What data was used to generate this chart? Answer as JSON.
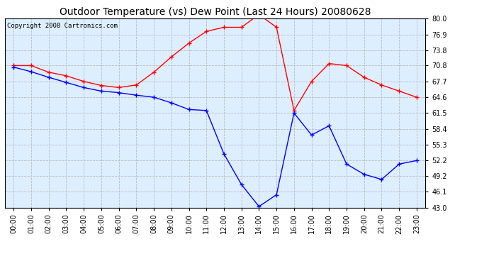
{
  "title": "Outdoor Temperature (vs) Dew Point (Last 24 Hours) 20080628",
  "copyright": "Copyright 2008 Cartronics.com",
  "x_labels": [
    "00:00",
    "01:00",
    "02:00",
    "03:00",
    "04:00",
    "05:00",
    "06:00",
    "07:00",
    "08:00",
    "09:00",
    "10:00",
    "11:00",
    "12:00",
    "13:00",
    "14:00",
    "15:00",
    "16:00",
    "17:00",
    "18:00",
    "19:00",
    "20:00",
    "21:00",
    "22:00",
    "23:00"
  ],
  "y_ticks": [
    43.0,
    46.1,
    49.2,
    52.2,
    55.3,
    58.4,
    61.5,
    64.6,
    67.7,
    70.8,
    73.8,
    76.9,
    80.0
  ],
  "y_min": 43.0,
  "y_max": 80.0,
  "temp_data": [
    70.8,
    70.8,
    69.5,
    68.8,
    67.7,
    66.9,
    66.5,
    67.0,
    69.5,
    72.5,
    75.2,
    77.5,
    78.3,
    78.3,
    80.8,
    78.3,
    62.0,
    67.7,
    71.2,
    70.8,
    68.5,
    67.0,
    65.8,
    64.6
  ],
  "dew_data": [
    70.5,
    69.6,
    68.5,
    67.5,
    66.5,
    65.8,
    65.5,
    65.0,
    64.6,
    63.5,
    62.2,
    62.0,
    53.5,
    47.5,
    43.2,
    45.5,
    61.5,
    57.2,
    59.0,
    51.5,
    49.5,
    48.5,
    51.5,
    52.2
  ],
  "temp_color": "#FF0000",
  "dew_color": "#0000FF",
  "bg_color": "#FFFFFF",
  "plot_bg_color": "#DDEEFF",
  "grid_color": "#BBBBBB",
  "title_fontsize": 10,
  "copyright_fontsize": 6.5,
  "line_width": 1.0,
  "marker_size": 4,
  "marker_style": "+"
}
